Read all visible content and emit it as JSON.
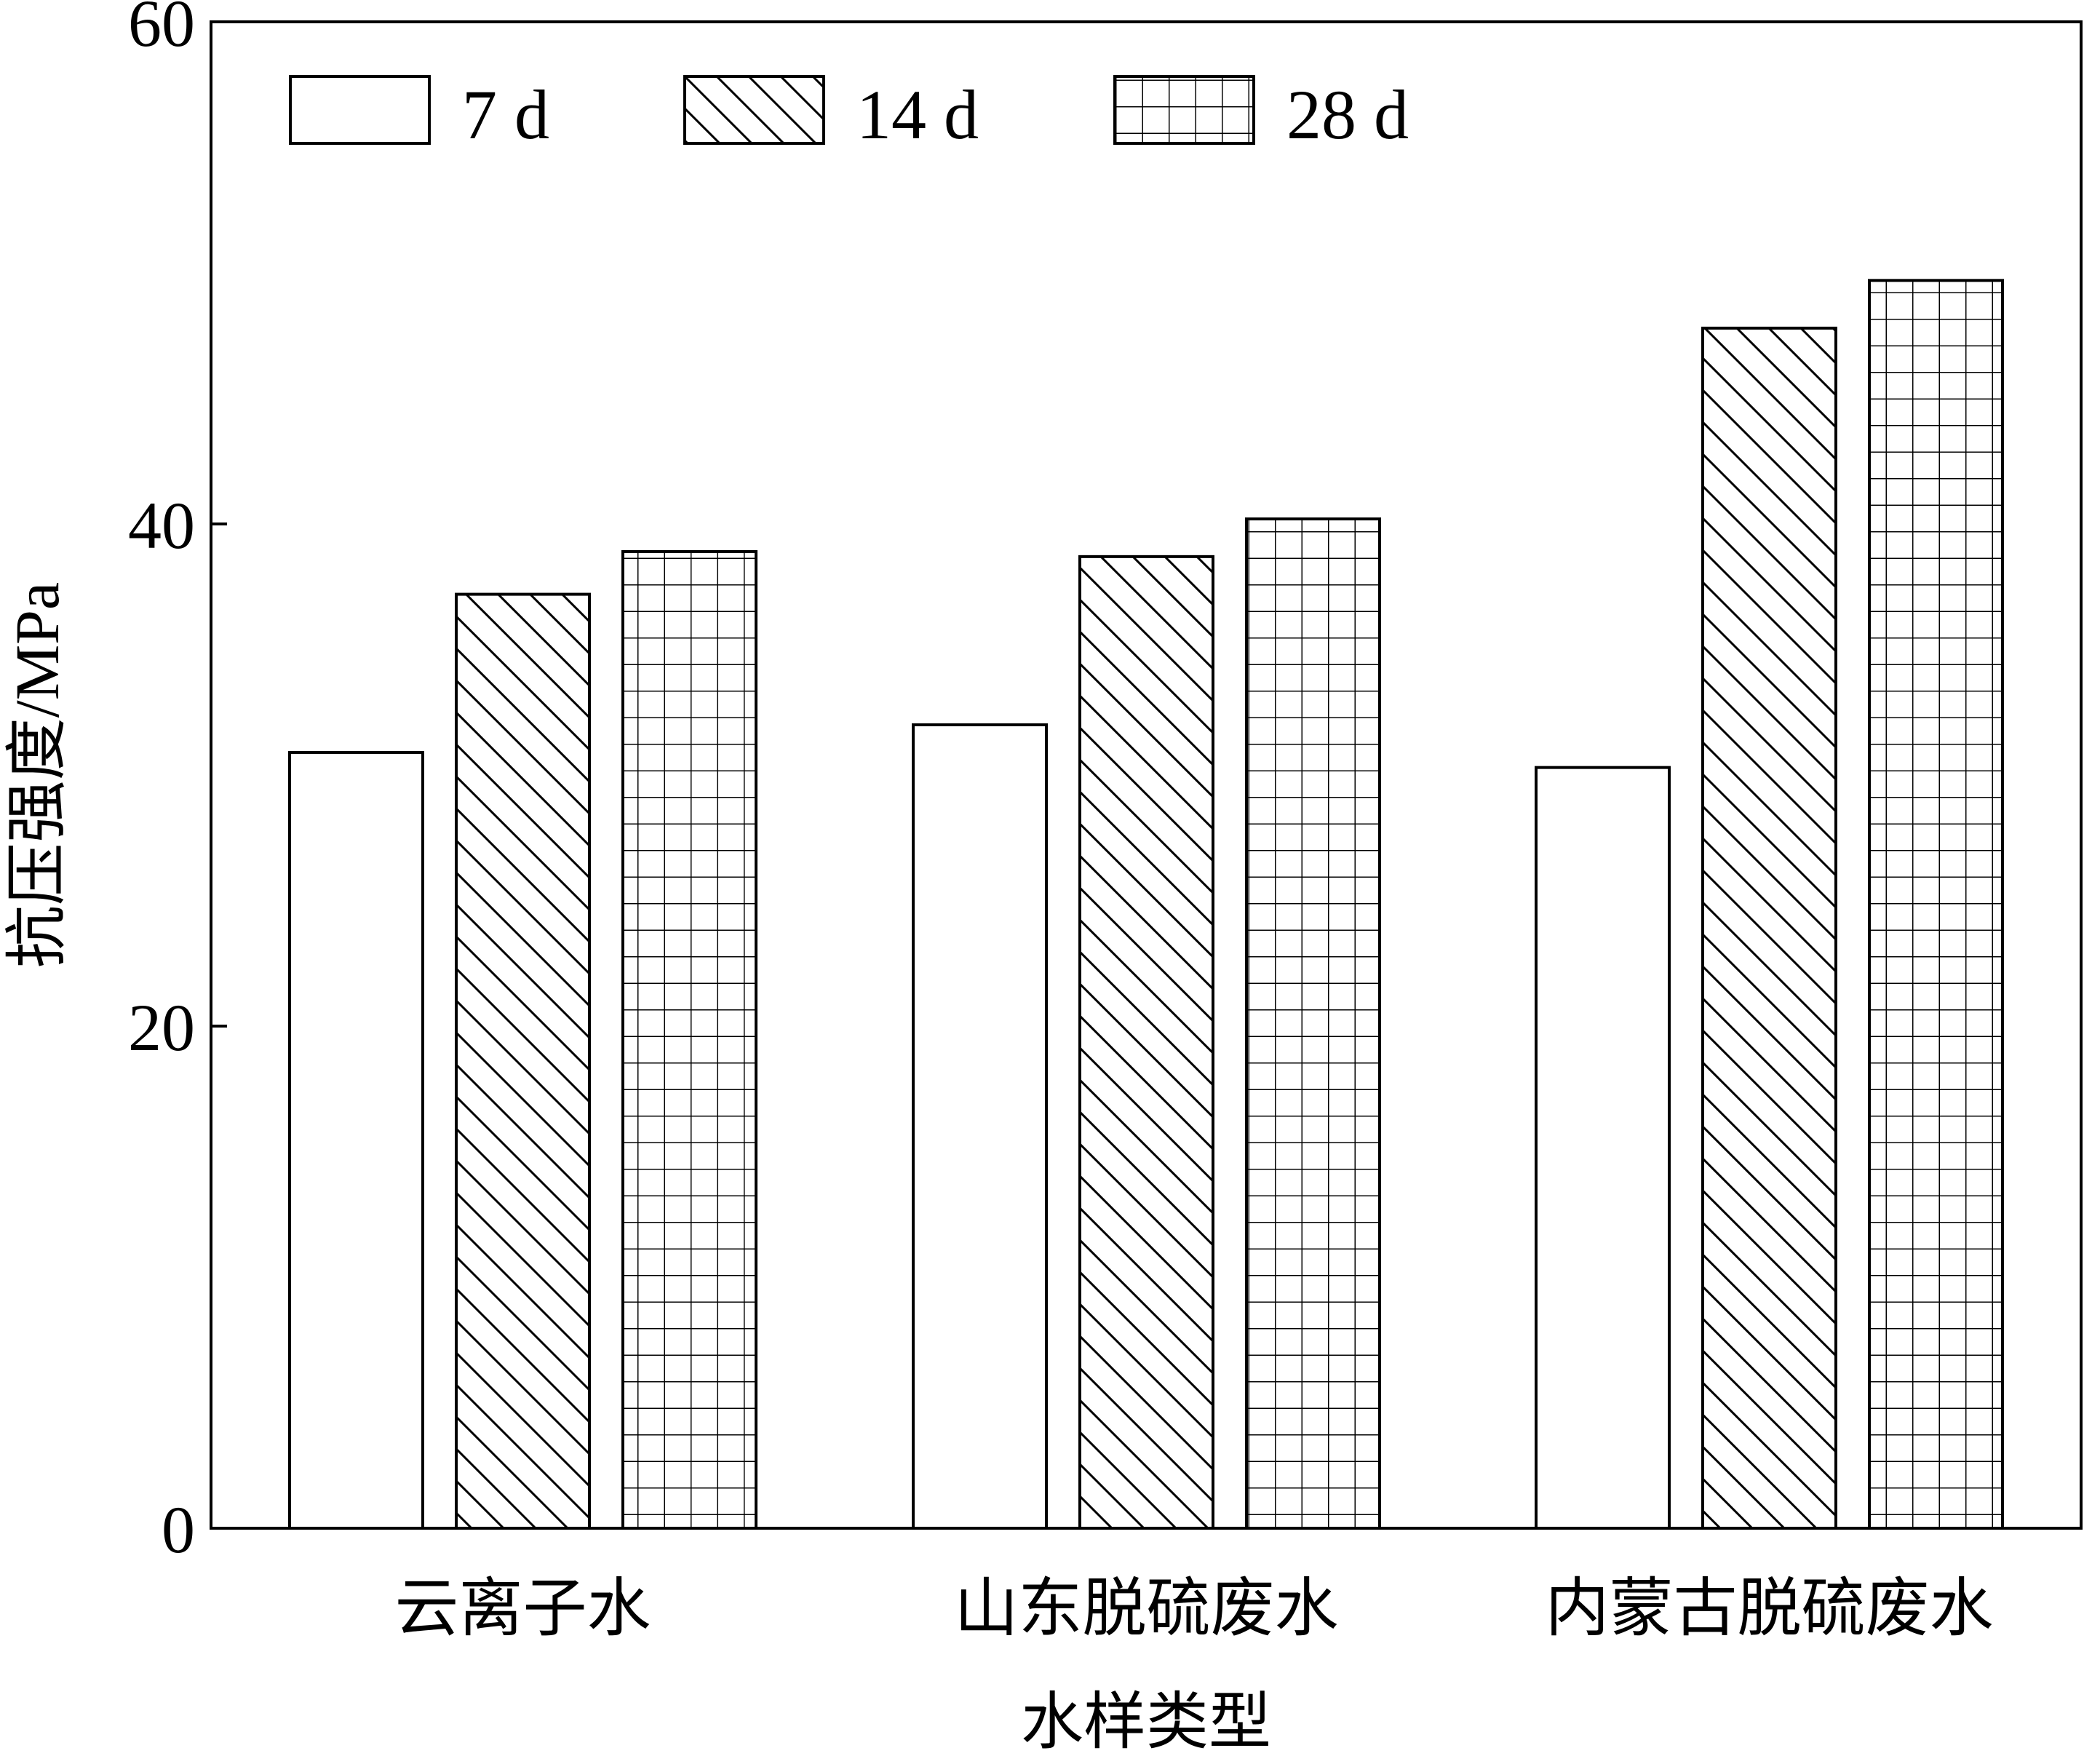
{
  "chart_data": {
    "type": "bar",
    "xlabel": "水样类型",
    "ylabel": "抗压强度/MPa",
    "ylim": [
      0,
      60
    ],
    "yticks": [
      "0",
      "20",
      "40",
      "60"
    ],
    "categories": [
      "云离子水",
      "山东脱硫废水",
      "内蒙古脱硫废水"
    ],
    "legend_position": "top-left",
    "grid": false,
    "series": [
      {
        "name": "7 d",
        "pattern": "plain",
        "values": [
          30.9,
          32.0,
          30.3
        ]
      },
      {
        "name": "14 d",
        "pattern": "diagonal",
        "values": [
          37.2,
          38.7,
          47.8
        ]
      },
      {
        "name": "28 d",
        "pattern": "grid",
        "values": [
          38.9,
          40.2,
          49.7
        ]
      }
    ]
  },
  "colors": {
    "stroke": "#000000",
    "fill": "#ffffff"
  }
}
